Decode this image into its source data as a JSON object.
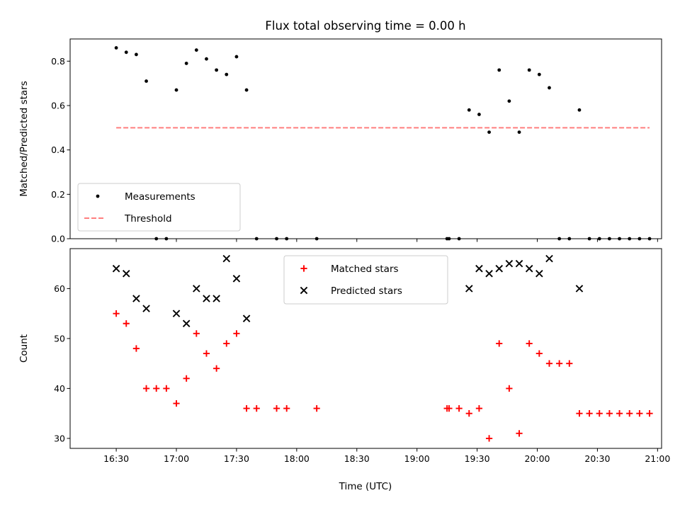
{
  "chart_data": {
    "type": "scatter",
    "title": "Flux total observing time = 0.00 h",
    "xlabel": "Time (UTC)",
    "x_unit": "minutes after 16:30 UTC",
    "xlim": [
      -23,
      272
    ],
    "xticks": [
      {
        "value": 0,
        "label": "16:30"
      },
      {
        "value": 30,
        "label": "17:00"
      },
      {
        "value": 60,
        "label": "17:30"
      },
      {
        "value": 90,
        "label": "18:00"
      },
      {
        "value": 120,
        "label": "18:30"
      },
      {
        "value": 150,
        "label": "19:00"
      },
      {
        "value": 180,
        "label": "19:30"
      },
      {
        "value": 210,
        "label": "20:00"
      },
      {
        "value": 240,
        "label": "20:30"
      },
      {
        "value": 270,
        "label": "21:00"
      }
    ],
    "panels": [
      {
        "id": "ratio",
        "ylabel": "Matched/Predicted stars",
        "ylim": [
          0,
          0.9
        ],
        "yticks": [
          "0.0",
          "0.2",
          "0.4",
          "0.6",
          "0.8"
        ],
        "ytick_values": [
          0,
          0.2,
          0.4,
          0.6,
          0.8
        ],
        "legend": {
          "position": "lower left"
        },
        "series": [
          {
            "name": "Measurements",
            "marker": "dot",
            "color": "#000000",
            "points": [
              [
                0,
                0.86
              ],
              [
                5,
                0.84
              ],
              [
                10,
                0.83
              ],
              [
                15,
                0.71
              ],
              [
                20,
                0.0
              ],
              [
                25,
                0.0
              ],
              [
                30,
                0.67
              ],
              [
                35,
                0.79
              ],
              [
                40,
                0.85
              ],
              [
                45,
                0.81
              ],
              [
                50,
                0.76
              ],
              [
                55,
                0.74
              ],
              [
                60,
                0.82
              ],
              [
                65,
                0.67
              ],
              [
                70,
                0.0
              ],
              [
                80,
                0.0
              ],
              [
                85,
                0.0
              ],
              [
                100,
                0.0
              ],
              [
                165,
                0.0
              ],
              [
                166,
                0.0
              ],
              [
                171,
                0.0
              ],
              [
                176,
                0.58
              ],
              [
                181,
                0.56
              ],
              [
                186,
                0.48
              ],
              [
                191,
                0.76
              ],
              [
                196,
                0.62
              ],
              [
                201,
                0.48
              ],
              [
                206,
                0.76
              ],
              [
                211,
                0.74
              ],
              [
                216,
                0.68
              ],
              [
                221,
                0.0
              ],
              [
                226,
                0.0
              ],
              [
                231,
                0.58
              ],
              [
                236,
                0.0
              ],
              [
                241,
                0.0
              ],
              [
                246,
                0.0
              ],
              [
                251,
                0.0
              ],
              [
                256,
                0.0
              ],
              [
                261,
                0.0
              ],
              [
                266,
                0.0
              ]
            ]
          },
          {
            "name": "Threshold",
            "marker": "dashed-line",
            "color": "#ff7f7f",
            "x": [
              0,
              266
            ],
            "y": 0.5
          }
        ]
      },
      {
        "id": "count",
        "ylabel": "Count",
        "ylim": [
          28,
          68
        ],
        "yticks": [
          "30",
          "40",
          "50",
          "60"
        ],
        "ytick_values": [
          30,
          40,
          50,
          60
        ],
        "legend": {
          "position": "upper center"
        },
        "series": [
          {
            "name": "Matched stars",
            "marker": "plus",
            "color": "#ff0000",
            "points": [
              [
                0,
                55
              ],
              [
                5,
                53
              ],
              [
                10,
                48
              ],
              [
                15,
                40
              ],
              [
                20,
                40
              ],
              [
                25,
                40
              ],
              [
                30,
                37
              ],
              [
                35,
                42
              ],
              [
                40,
                51
              ],
              [
                45,
                47
              ],
              [
                50,
                44
              ],
              [
                55,
                49
              ],
              [
                60,
                51
              ],
              [
                65,
                36
              ],
              [
                70,
                36
              ],
              [
                80,
                36
              ],
              [
                85,
                36
              ],
              [
                100,
                36
              ],
              [
                165,
                36
              ],
              [
                166,
                36
              ],
              [
                171,
                36
              ],
              [
                176,
                35
              ],
              [
                181,
                36
              ],
              [
                186,
                30
              ],
              [
                191,
                49
              ],
              [
                196,
                40
              ],
              [
                201,
                31
              ],
              [
                206,
                49
              ],
              [
                211,
                47
              ],
              [
                216,
                45
              ],
              [
                221,
                45
              ],
              [
                226,
                45
              ],
              [
                231,
                35
              ],
              [
                236,
                35
              ],
              [
                241,
                35
              ],
              [
                246,
                35
              ],
              [
                251,
                35
              ],
              [
                256,
                35
              ],
              [
                261,
                35
              ],
              [
                266,
                35
              ]
            ]
          },
          {
            "name": "Predicted stars",
            "marker": "x",
            "color": "#000000",
            "points": [
              [
                0,
                64
              ],
              [
                5,
                63
              ],
              [
                10,
                58
              ],
              [
                15,
                56
              ],
              [
                30,
                55
              ],
              [
                35,
                53
              ],
              [
                40,
                60
              ],
              [
                45,
                58
              ],
              [
                50,
                58
              ],
              [
                55,
                66
              ],
              [
                60,
                62
              ],
              [
                65,
                54
              ],
              [
                176,
                60
              ],
              [
                181,
                64
              ],
              [
                186,
                63
              ],
              [
                191,
                64
              ],
              [
                196,
                65
              ],
              [
                201,
                65
              ],
              [
                206,
                64
              ],
              [
                211,
                63
              ],
              [
                216,
                66
              ],
              [
                231,
                60
              ]
            ]
          }
        ]
      }
    ]
  }
}
